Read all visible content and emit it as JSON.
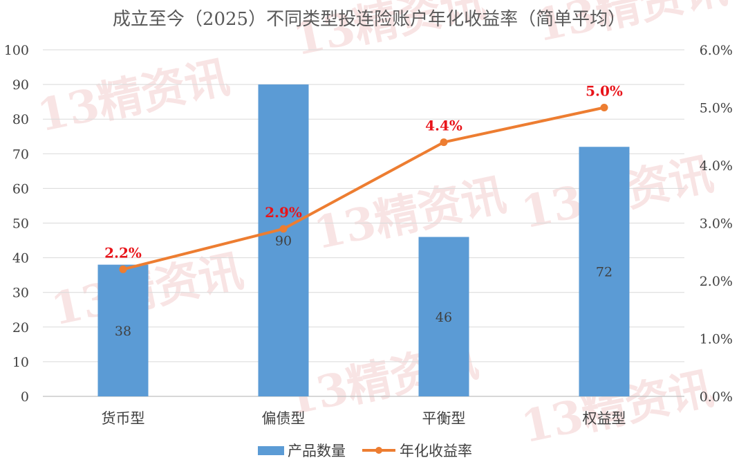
{
  "chart_data": {
    "type": "bar",
    "title": "成立至今（2025）不同类型投连险账户年化收益率（简单平均）",
    "categories": [
      "货币型",
      "偏债型",
      "平衡型",
      "权益型"
    ],
    "series": [
      {
        "name": "产品数量",
        "kind": "bar",
        "axis": "left",
        "values": [
          38,
          90,
          46,
          72
        ],
        "labels": [
          "38",
          "90",
          "46",
          "72"
        ],
        "color": "#5b9bd5"
      },
      {
        "name": "年化收益率",
        "kind": "line",
        "axis": "right",
        "values": [
          2.2,
          2.9,
          4.4,
          5.0
        ],
        "labels": [
          "2.2%",
          "2.9%",
          "4.4%",
          "5.0%"
        ],
        "color": "#ed7d31",
        "label_color": "#e8141a"
      }
    ],
    "y_left": {
      "ylim": [
        0,
        100
      ],
      "ticks": [
        "0",
        "10",
        "20",
        "30",
        "40",
        "50",
        "60",
        "70",
        "80",
        "90",
        "100"
      ]
    },
    "y_right": {
      "ylim": [
        0,
        6
      ],
      "ticks": [
        "0.0%",
        "1.0%",
        "2.0%",
        "3.0%",
        "4.0%",
        "5.0%",
        "6.0%"
      ]
    },
    "grid": true,
    "legend_position": "bottom"
  },
  "watermark": {
    "text": "13精资讯",
    "color": "#e8a0a0"
  }
}
